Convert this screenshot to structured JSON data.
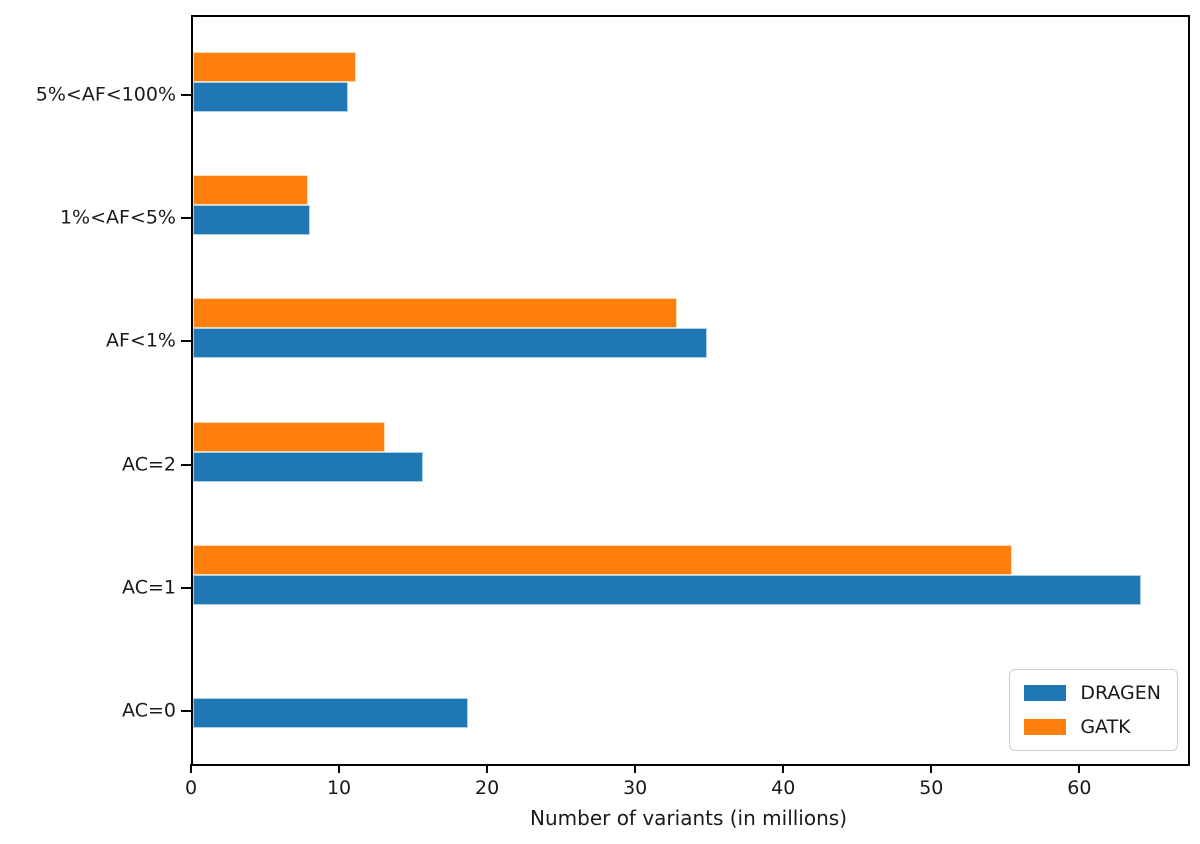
{
  "chart_data": {
    "type": "bar",
    "orientation": "horizontal",
    "title": "",
    "xlabel": "Number of variants (in millions)",
    "ylabel": "",
    "categories": [
      "5%<AF<100%",
      "1%<AF<5%",
      "AF<1%",
      "AC=2",
      "AC=1",
      "AC=0"
    ],
    "series": [
      {
        "name": "DRAGEN",
        "color": "#1f77b4",
        "values": [
          10.5,
          7.9,
          34.7,
          15.5,
          64.0,
          18.6
        ]
      },
      {
        "name": "GATK",
        "color": "#ff7f0e",
        "values": [
          11.0,
          7.8,
          32.7,
          13.0,
          55.3,
          0
        ]
      }
    ],
    "xticks": [
      0,
      10,
      20,
      30,
      40,
      50,
      60
    ],
    "xlim": [
      0,
      67.2
    ],
    "grid": false,
    "legend": {
      "position": "lower right",
      "entries": [
        "DRAGEN",
        "GATK"
      ]
    }
  }
}
